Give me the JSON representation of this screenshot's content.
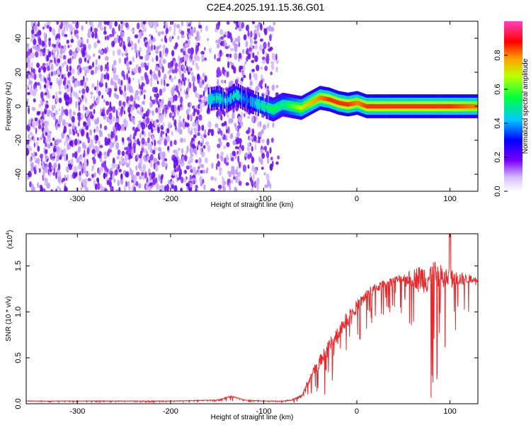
{
  "title": "C2E4.2025.191.15.36.G01",
  "chart_data": [
    {
      "type": "heatmap",
      "title": "C2E4.2025.191.15.36.G01",
      "xlabel": "Height of straight line (km)",
      "ylabel": "Frequency (Hz)",
      "xlim": [
        -355,
        130
      ],
      "ylim": [
        -50,
        50
      ],
      "xticks": [
        -300,
        -200,
        -100,
        0,
        100
      ],
      "yticks": [
        -40,
        -20,
        0,
        20,
        40
      ],
      "colorbar": {
        "label": "Normalized spectral amplitude",
        "range": [
          0.0,
          1.0
        ],
        "ticks": [
          0.0,
          0.2,
          0.4,
          0.6,
          0.8
        ],
        "tick_labels": [
          "0.0",
          "0.2",
          "0.4",
          "0.6",
          "0.8"
        ]
      },
      "noise_region": {
        "x_range": [
          -355,
          -80
        ],
        "level": 0.05
      },
      "signal_band": {
        "x": [
          -160,
          -150,
          -140,
          -130,
          -120,
          -110,
          -100,
          -90,
          -80,
          -70,
          -60,
          -50,
          -40,
          -30,
          -20,
          -10,
          0,
          10,
          20,
          40,
          60,
          80,
          100,
          130
        ],
        "freq": [
          4,
          5,
          3,
          7,
          4,
          2,
          0,
          -2,
          1,
          0,
          -1,
          2,
          5,
          4,
          2,
          1,
          2,
          0,
          0,
          0,
          0,
          0,
          0,
          0
        ],
        "amplitude": [
          0.45,
          0.5,
          0.4,
          0.5,
          0.35,
          0.45,
          0.5,
          0.55,
          0.5,
          0.6,
          0.7,
          0.75,
          0.8,
          0.85,
          0.85,
          0.85,
          0.8,
          0.85,
          0.85,
          0.85,
          0.85,
          0.85,
          0.85,
          0.8
        ]
      }
    },
    {
      "type": "line",
      "xlabel": "Height of straight line (km)",
      "ylabel": "SNR (10 * v/v)",
      "multiplier_label": "(x10",
      "multiplier_exp": "4",
      "xlim": [
        -355,
        130
      ],
      "ylim": [
        0,
        1.85
      ],
      "xticks": [
        -300,
        -200,
        -100,
        0,
        100
      ],
      "yticks": [
        0.0,
        0.5,
        1.0,
        1.5
      ],
      "ytick_labels": [
        "0.0",
        "0.5",
        "1.0",
        "1.5"
      ],
      "color": "#e8282b",
      "series": [
        {
          "x": [
            -355,
            -300,
            -250,
            -200,
            -150,
            -135,
            -130,
            -120,
            -100,
            -80,
            -70,
            -60,
            -55,
            -50,
            -45,
            -40,
            -35,
            -30,
            -25,
            -20,
            -15,
            -10,
            -5,
            0,
            5,
            10,
            15,
            20,
            25,
            30,
            35,
            40,
            45,
            50,
            55,
            60,
            65,
            70,
            75,
            80,
            85,
            90,
            95,
            100,
            105,
            110,
            115,
            120,
            125,
            130
          ],
          "y": [
            0.03,
            0.03,
            0.03,
            0.03,
            0.04,
            0.08,
            0.07,
            0.04,
            0.03,
            0.03,
            0.04,
            0.08,
            0.18,
            0.28,
            0.38,
            0.46,
            0.54,
            0.62,
            0.7,
            0.78,
            0.86,
            0.93,
            1.0,
            1.06,
            1.12,
            1.18,
            1.22,
            1.26,
            1.28,
            1.3,
            1.32,
            1.34,
            1.35,
            1.36,
            1.36,
            1.37,
            1.37,
            1.37,
            1.37,
            1.37,
            1.37,
            1.37,
            1.36,
            1.36,
            1.36,
            1.36,
            1.36,
            1.36,
            1.36,
            1.36
          ],
          "noise_amplitude": [
            0.01,
            0.01,
            0.01,
            0.01,
            0.01,
            0.03,
            0.02,
            0.01,
            0.01,
            0.01,
            0.02,
            0.06,
            0.1,
            0.15,
            0.2,
            0.25,
            0.28,
            0.3,
            0.32,
            0.32,
            0.32,
            0.32,
            0.3,
            0.28,
            0.26,
            0.24,
            0.22,
            0.2,
            0.2,
            0.2,
            0.2,
            0.2,
            0.22,
            0.25,
            0.3,
            0.4,
            0.5,
            0.6,
            0.7,
            0.8,
            0.7,
            0.6,
            0.5,
            0.45,
            0.35,
            0.3,
            0.25,
            0.2,
            0.15,
            0.1
          ]
        }
      ]
    }
  ]
}
